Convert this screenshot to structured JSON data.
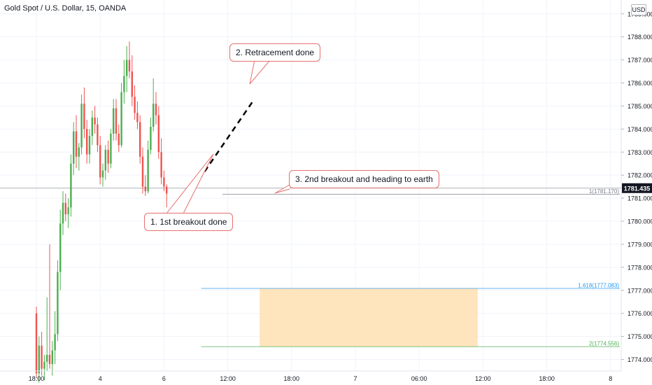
{
  "symbol_title": "Gold Spot / U.S. Dollar, 15, OANDA",
  "currency_label": "USD",
  "annotations": {
    "callout_1": "1. 1st breakout done",
    "callout_2": "2. Retracement done",
    "callout_3": "3. 2nd breakout and heading to earth"
  },
  "colors": {
    "up": "#26a69a",
    "down": "#ef5350",
    "bullish_candle": "#4caf50",
    "bearish_candle": "#ef5350",
    "callout_border": "#e5716f",
    "fib_1618": "#2196f3",
    "fib_2": "#4caf50",
    "target_zone": "#ffe0b2",
    "price_badge": "#131722"
  },
  "chart_data": {
    "type": "candlestick",
    "y_axis": {
      "range": [
        1773.5,
        1789.6
      ],
      "ticks": [
        "1774.000",
        "1775.000",
        "1776.000",
        "1777.000",
        "1778.000",
        "1779.000",
        "1780.000",
        "1781.000",
        "1782.000",
        "1783.000",
        "1784.000",
        "1785.000",
        "1786.000",
        "1787.000",
        "1788.000",
        "1789.000"
      ]
    },
    "x_axis": {
      "ticks": [
        {
          "label": "18:00",
          "bar": 0
        },
        {
          "label": "4",
          "bar": 24
        },
        {
          "label": "6",
          "bar": 48
        },
        {
          "label": "12:00",
          "bar": 72
        },
        {
          "label": "18:00",
          "bar": 96
        },
        {
          "label": "7",
          "bar": 120
        },
        {
          "label": "06:00",
          "bar": 144
        },
        {
          "label": "12:00",
          "bar": 168
        },
        {
          "label": "18:00",
          "bar": 192
        },
        {
          "label": "8",
          "bar": 216
        }
      ]
    },
    "last_price": "1781.435",
    "fib_levels": [
      {
        "label": "1(1781.170)",
        "value": 1781.17,
        "start_bar": 70,
        "end_bar": 216
      },
      {
        "label": "1.618(1777.083)",
        "value": 1777.083,
        "start_bar": 62,
        "end_bar": 216
      },
      {
        "label": "2(1774.556)",
        "value": 1774.556,
        "start_bar": 62,
        "end_bar": 216
      }
    ],
    "target_zone": {
      "start_bar": 84,
      "end_bar": 166,
      "high": 1777.083,
      "low": 1774.556
    },
    "trend_line": {
      "start": {
        "bar": 57,
        "value": 1781.1
      },
      "end": {
        "bar": 82,
        "value": 1785.3
      }
    },
    "candles": [
      {
        "o": 1776.0,
        "h": 1776.3,
        "l": 1773.2,
        "c": 1773.4
      },
      {
        "o": 1773.4,
        "h": 1775.0,
        "l": 1773.0,
        "c": 1774.6
      },
      {
        "o": 1774.6,
        "h": 1775.2,
        "l": 1773.3,
        "c": 1773.6
      },
      {
        "o": 1773.6,
        "h": 1774.2,
        "l": 1773.1,
        "c": 1773.9
      },
      {
        "o": 1773.9,
        "h": 1776.7,
        "l": 1773.5,
        "c": 1774.2
      },
      {
        "o": 1774.2,
        "h": 1779.0,
        "l": 1773.6,
        "c": 1773.8
      },
      {
        "o": 1773.8,
        "h": 1774.8,
        "l": 1773.3,
        "c": 1774.4
      },
      {
        "o": 1774.4,
        "h": 1776.1,
        "l": 1773.8,
        "c": 1775.1
      },
      {
        "o": 1775.1,
        "h": 1778.3,
        "l": 1774.8,
        "c": 1777.8
      },
      {
        "o": 1777.8,
        "h": 1780.5,
        "l": 1777.0,
        "c": 1779.9
      },
      {
        "o": 1779.9,
        "h": 1781.3,
        "l": 1779.4,
        "c": 1780.8
      },
      {
        "o": 1780.8,
        "h": 1781.2,
        "l": 1780.0,
        "c": 1780.3
      },
      {
        "o": 1780.3,
        "h": 1781.0,
        "l": 1779.7,
        "c": 1780.6
      },
      {
        "o": 1780.6,
        "h": 1782.9,
        "l": 1780.2,
        "c": 1782.5
      },
      {
        "o": 1782.5,
        "h": 1784.3,
        "l": 1782.0,
        "c": 1783.9
      },
      {
        "o": 1783.9,
        "h": 1784.6,
        "l": 1782.3,
        "c": 1782.8
      },
      {
        "o": 1782.8,
        "h": 1783.4,
        "l": 1782.2,
        "c": 1783.2
      },
      {
        "o": 1783.2,
        "h": 1785.5,
        "l": 1782.9,
        "c": 1785.1
      },
      {
        "o": 1785.1,
        "h": 1785.8,
        "l": 1783.6,
        "c": 1784.0
      },
      {
        "o": 1784.0,
        "h": 1784.4,
        "l": 1782.5,
        "c": 1782.9
      },
      {
        "o": 1782.9,
        "h": 1784.0,
        "l": 1782.5,
        "c": 1783.7
      },
      {
        "o": 1783.7,
        "h": 1784.8,
        "l": 1783.3,
        "c": 1784.5
      },
      {
        "o": 1784.5,
        "h": 1785.0,
        "l": 1783.8,
        "c": 1784.2
      },
      {
        "o": 1784.2,
        "h": 1784.5,
        "l": 1783.0,
        "c": 1783.3
      },
      {
        "o": 1783.3,
        "h": 1783.7,
        "l": 1781.6,
        "c": 1781.9
      },
      {
        "o": 1781.9,
        "h": 1782.5,
        "l": 1781.5,
        "c": 1782.2
      },
      {
        "o": 1782.2,
        "h": 1783.3,
        "l": 1781.8,
        "c": 1783.1
      },
      {
        "o": 1783.1,
        "h": 1783.5,
        "l": 1782.1,
        "c": 1782.5
      },
      {
        "o": 1782.5,
        "h": 1784.0,
        "l": 1782.3,
        "c": 1783.8
      },
      {
        "o": 1783.8,
        "h": 1785.3,
        "l": 1783.5,
        "c": 1784.9
      },
      {
        "o": 1784.9,
        "h": 1785.3,
        "l": 1783.5,
        "c": 1783.8
      },
      {
        "o": 1783.8,
        "h": 1784.2,
        "l": 1783.0,
        "c": 1783.3
      },
      {
        "o": 1783.3,
        "h": 1786.0,
        "l": 1783.2,
        "c": 1785.6
      },
      {
        "o": 1785.6,
        "h": 1787.0,
        "l": 1785.1,
        "c": 1786.3
      },
      {
        "o": 1786.3,
        "h": 1787.6,
        "l": 1785.6,
        "c": 1787.0
      },
      {
        "o": 1787.0,
        "h": 1787.8,
        "l": 1786.2,
        "c": 1786.5
      },
      {
        "o": 1786.5,
        "h": 1787.2,
        "l": 1785.0,
        "c": 1785.4
      },
      {
        "o": 1785.4,
        "h": 1785.9,
        "l": 1784.4,
        "c": 1784.7
      },
      {
        "o": 1784.7,
        "h": 1785.2,
        "l": 1784.0,
        "c": 1784.3
      },
      {
        "o": 1784.3,
        "h": 1784.6,
        "l": 1782.5,
        "c": 1782.8
      },
      {
        "o": 1782.8,
        "h": 1783.2,
        "l": 1781.2,
        "c": 1781.5
      },
      {
        "o": 1781.5,
        "h": 1782.0,
        "l": 1781.1,
        "c": 1781.3
      },
      {
        "o": 1781.3,
        "h": 1783.5,
        "l": 1781.2,
        "c": 1783.1
      },
      {
        "o": 1783.1,
        "h": 1784.5,
        "l": 1782.9,
        "c": 1784.1
      },
      {
        "o": 1784.1,
        "h": 1786.2,
        "l": 1783.9,
        "c": 1785.1
      },
      {
        "o": 1785.1,
        "h": 1785.6,
        "l": 1784.2,
        "c": 1784.6
      },
      {
        "o": 1784.6,
        "h": 1785.0,
        "l": 1782.7,
        "c": 1783.0
      },
      {
        "o": 1783.0,
        "h": 1783.6,
        "l": 1781.6,
        "c": 1781.9
      },
      {
        "o": 1781.9,
        "h": 1782.2,
        "l": 1781.3,
        "c": 1781.5
      },
      {
        "o": 1781.5,
        "h": 1781.6,
        "l": 1780.6,
        "c": 1781.2
      }
    ]
  }
}
